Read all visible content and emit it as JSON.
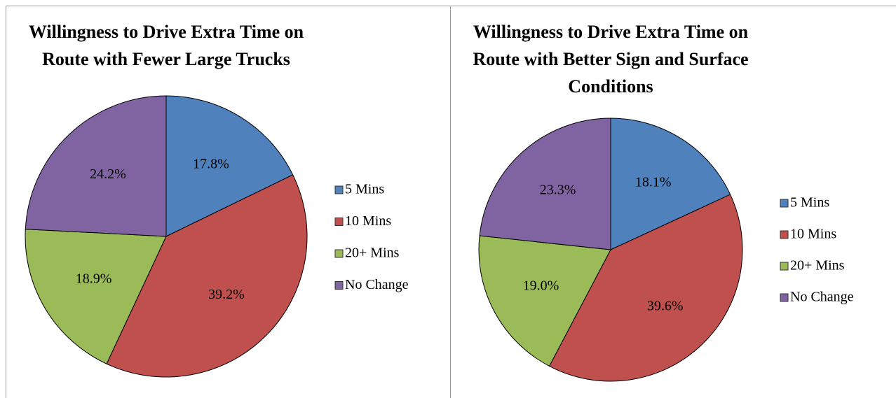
{
  "chart_data": [
    {
      "type": "pie",
      "title": "Willingness to Drive Extra Time on Route with Fewer Large Trucks",
      "categories": [
        "5 Mins",
        "10 Mins",
        "20+ Mins",
        "No Change"
      ],
      "values": [
        17.8,
        39.2,
        18.9,
        24.2
      ],
      "value_labels": [
        "17.8%",
        "39.2%",
        "18.9%",
        "24.2%"
      ],
      "colors": [
        "#4f81bd",
        "#c0504d",
        "#9bbb59",
        "#8064a2"
      ]
    },
    {
      "type": "pie",
      "title": "Willingness to Drive Extra Time on Route with Better Sign and Surface Conditions",
      "categories": [
        "5 Mins",
        "10 Mins",
        "20+ Mins",
        "No Change"
      ],
      "values": [
        18.1,
        39.6,
        19.0,
        23.3
      ],
      "value_labels": [
        "18.1%",
        "39.6%",
        "19.0%",
        "23.3%"
      ],
      "colors": [
        "#4f81bd",
        "#c0504d",
        "#9bbb59",
        "#8064a2"
      ]
    }
  ]
}
